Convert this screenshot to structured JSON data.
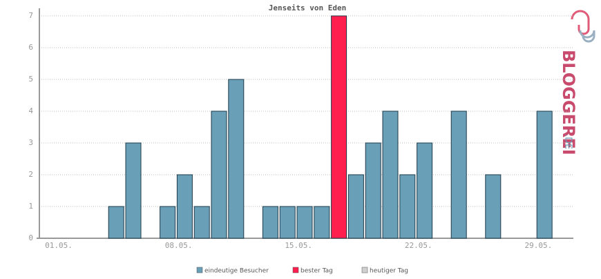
{
  "chart_data": {
    "type": "bar",
    "title": "Jenseits von Eden",
    "categories": [
      "01.05.",
      null,
      null,
      null,
      null,
      null,
      null,
      "08.05.",
      null,
      null,
      null,
      null,
      null,
      null,
      "15.05.",
      null,
      null,
      null,
      null,
      null,
      null,
      "22.05.",
      null,
      null,
      null,
      null,
      null,
      null,
      "29.05.",
      null,
      null
    ],
    "series": [
      {
        "name": "eindeutige Besucher",
        "color": "#6a9fb8",
        "values": [
          0,
          0,
          0,
          0,
          1,
          3,
          0,
          1,
          2,
          1,
          4,
          5,
          0,
          1,
          1,
          1,
          1,
          null,
          2,
          3,
          4,
          2,
          3,
          0,
          4,
          0,
          2,
          0,
          0,
          4,
          0
        ]
      },
      {
        "name": "bester Tag",
        "color": "#ff1f4f",
        "values": [
          null,
          null,
          null,
          null,
          null,
          null,
          null,
          null,
          null,
          null,
          null,
          null,
          null,
          null,
          null,
          null,
          null,
          7,
          null,
          null,
          null,
          null,
          null,
          null,
          null,
          null,
          null,
          null,
          null,
          null,
          null
        ]
      },
      {
        "name": "heutiger Tag",
        "color": "#d0d0d0",
        "values": [
          null,
          null,
          null,
          null,
          null,
          null,
          null,
          null,
          null,
          null,
          null,
          null,
          null,
          null,
          null,
          null,
          null,
          null,
          null,
          null,
          null,
          null,
          null,
          null,
          null,
          null,
          null,
          null,
          null,
          null,
          null
        ]
      }
    ],
    "ylim": [
      0,
      7
    ],
    "yticks": [
      0,
      1,
      2,
      3,
      4,
      5,
      6,
      7
    ],
    "grid": true
  },
  "logo": {
    "name": "BLOGGEREI",
    "suffix": ".DE"
  }
}
